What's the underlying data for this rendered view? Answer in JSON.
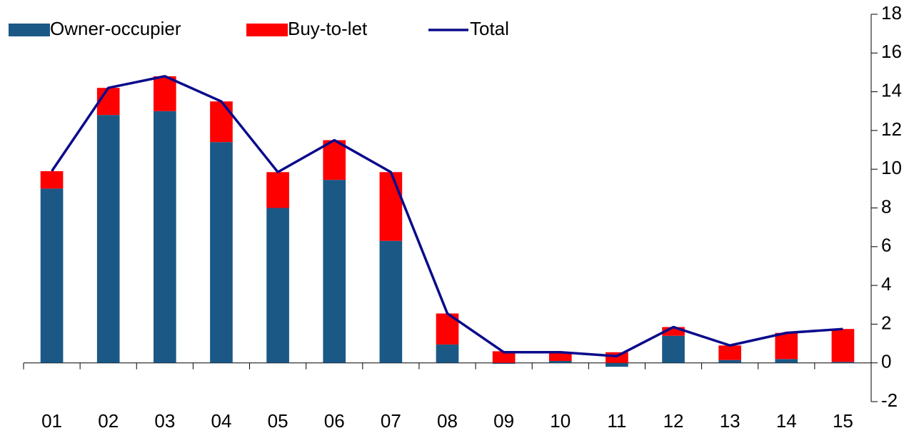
{
  "chart_data": {
    "type": "bar",
    "stacked": true,
    "axis_side": "right",
    "categories": [
      "01",
      "02",
      "03",
      "04",
      "05",
      "06",
      "07",
      "08",
      "09",
      "10",
      "11",
      "12",
      "13",
      "14",
      "15"
    ],
    "series": [
      {
        "name": "Owner-occupier",
        "type": "bar",
        "color": "#1b5886",
        "values": [
          9.0,
          12.8,
          13.0,
          11.4,
          8.0,
          9.45,
          6.3,
          0.95,
          -0.05,
          0.1,
          -0.2,
          1.4,
          0.15,
          0.2,
          0.05
        ]
      },
      {
        "name": "Buy-to-let",
        "type": "bar",
        "color": "#ff0000",
        "values": [
          0.9,
          1.4,
          1.8,
          2.1,
          1.85,
          2.05,
          3.55,
          1.6,
          0.6,
          0.45,
          0.55,
          0.45,
          0.75,
          1.35,
          1.7
        ]
      },
      {
        "name": "Total",
        "type": "line",
        "color": "#0a0a8c",
        "values": [
          9.9,
          14.2,
          14.8,
          13.5,
          9.85,
          11.5,
          9.85,
          2.55,
          0.55,
          0.55,
          0.35,
          1.85,
          0.9,
          1.55,
          1.75
        ]
      }
    ],
    "ylim": [
      -2,
      18
    ],
    "yticks": [
      -2,
      0,
      2,
      4,
      6,
      8,
      10,
      12,
      14,
      16,
      18
    ]
  }
}
